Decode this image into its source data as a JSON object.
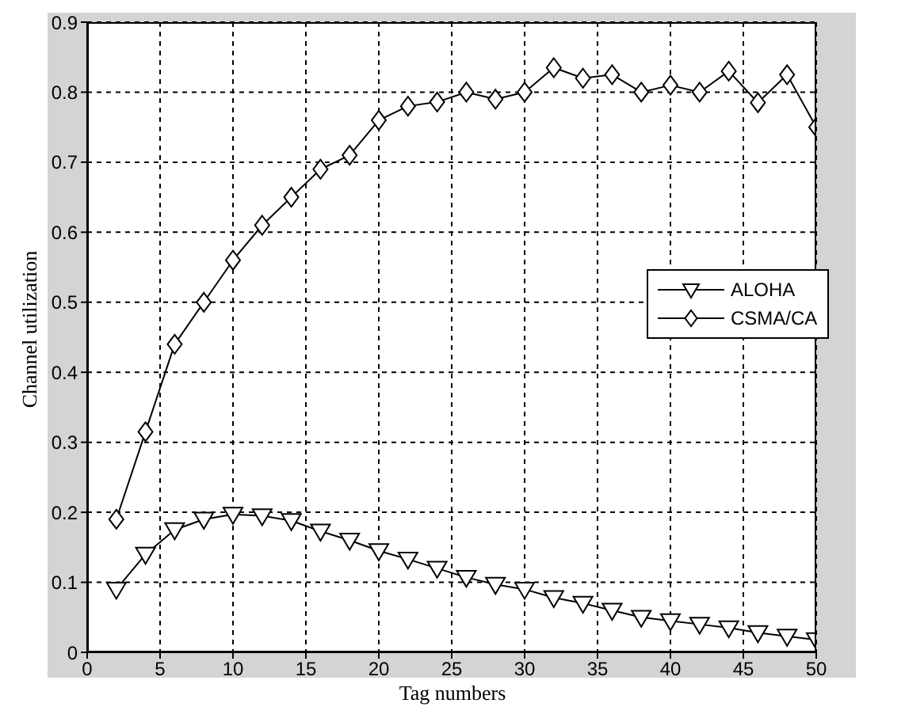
{
  "chart_data": {
    "type": "line",
    "xlabel": "Tag numbers",
    "ylabel": "Channel utilization",
    "x": [
      2,
      4,
      6,
      8,
      10,
      12,
      14,
      16,
      18,
      20,
      22,
      24,
      26,
      28,
      30,
      32,
      34,
      36,
      38,
      40,
      42,
      44,
      46,
      48,
      50
    ],
    "series": [
      {
        "name": "ALOHA",
        "color": "#000000",
        "marker": "triangle",
        "values": [
          0.09,
          0.14,
          0.175,
          0.19,
          0.197,
          0.195,
          0.188,
          0.173,
          0.16,
          0.145,
          0.133,
          0.12,
          0.107,
          0.097,
          0.09,
          0.078,
          0.07,
          0.06,
          0.05,
          0.045,
          0.04,
          0.035,
          0.028,
          0.023,
          0.018
        ]
      },
      {
        "name": "CSMA/CA",
        "color": "#000000",
        "marker": "diamond",
        "values": [
          0.19,
          0.315,
          0.44,
          0.5,
          0.56,
          0.61,
          0.65,
          0.69,
          0.71,
          0.76,
          0.78,
          0.786,
          0.8,
          0.79,
          0.8,
          0.835,
          0.82,
          0.825,
          0.8,
          0.81,
          0.8,
          0.83,
          0.785,
          0.825,
          0.75
        ]
      }
    ],
    "xlim": [
      0,
      50
    ],
    "xticks": [
      0,
      5,
      10,
      15,
      20,
      25,
      30,
      35,
      40,
      45,
      50
    ],
    "ylim": [
      0,
      0.9
    ],
    "yticks": [
      0,
      0.1,
      0.2,
      0.3,
      0.4,
      0.5,
      0.6,
      0.7,
      0.8,
      0.9
    ],
    "grid": true,
    "legend": "right",
    "line_style": "solid"
  }
}
